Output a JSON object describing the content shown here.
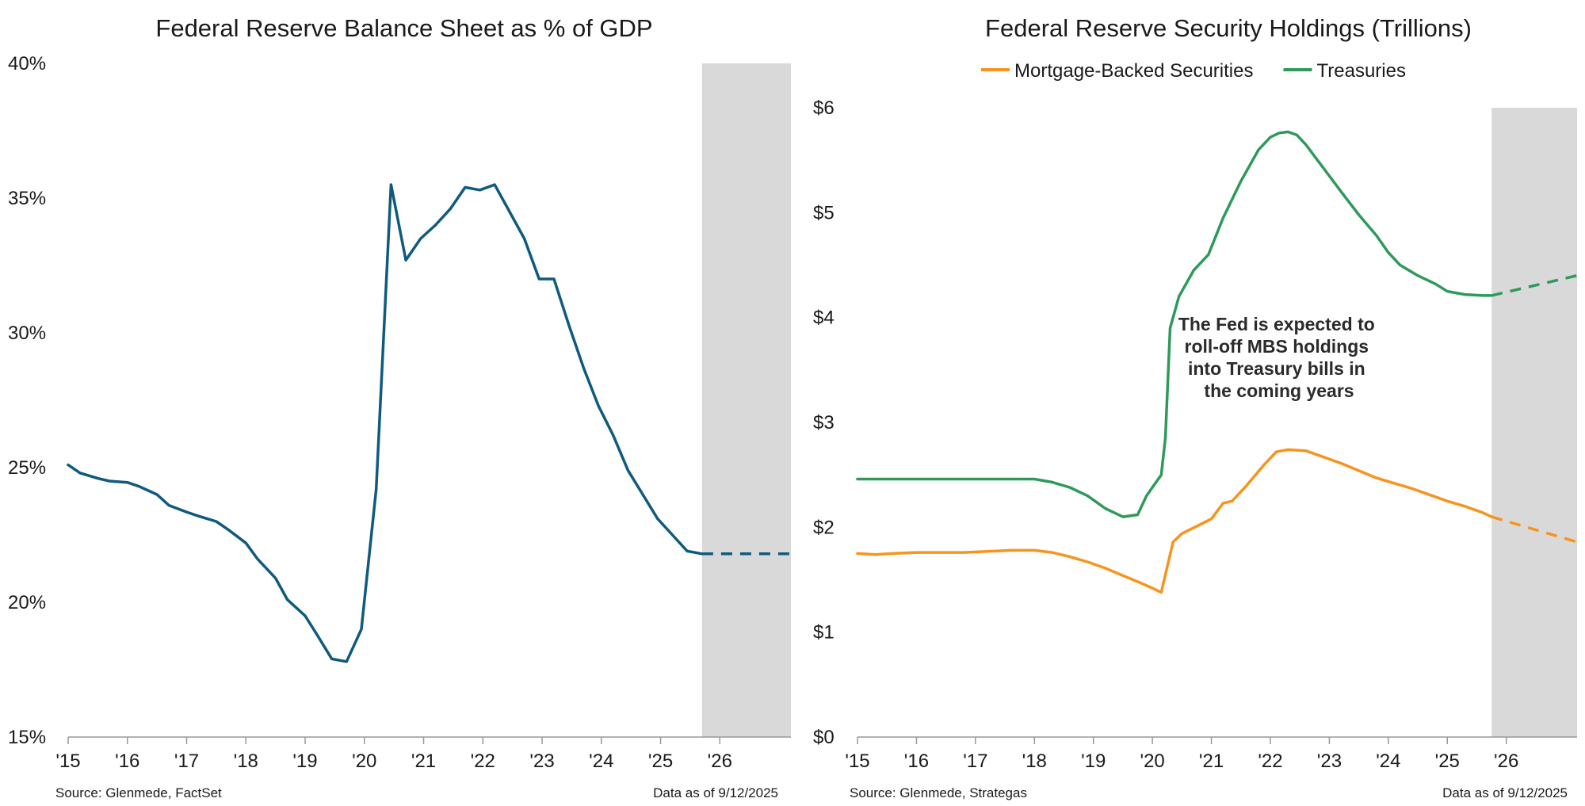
{
  "chart_data": [
    {
      "type": "line",
      "title": "Federal Reserve Balance Sheet as % of GDP",
      "x_ticks": [
        "'15",
        "'16",
        "'17",
        "'18",
        "'19",
        "'20",
        "'21",
        "'22",
        "'23",
        "'24",
        "'25",
        "'26"
      ],
      "y_ticks": [
        "15%",
        "20%",
        "25%",
        "30%",
        "35%",
        "40%"
      ],
      "xlim": [
        2015.0,
        2027.2
      ],
      "ylim": [
        15,
        40
      ],
      "grid": false,
      "shaded_region": [
        2025.7,
        2027.2
      ],
      "series": [
        {
          "color": "#0f5a7e",
          "style": "solid",
          "x": [
            2015.0,
            2015.2,
            2015.5,
            2015.7,
            2016.0,
            2016.2,
            2016.5,
            2016.7,
            2017.0,
            2017.2,
            2017.5,
            2017.7,
            2018.0,
            2018.2,
            2018.5,
            2018.7,
            2019.0,
            2019.2,
            2019.45,
            2019.7,
            2019.95,
            2020.2,
            2020.45,
            2020.7,
            2020.95,
            2021.2,
            2021.45,
            2021.7,
            2021.95,
            2022.2,
            2022.45,
            2022.7,
            2022.95,
            2023.2,
            2023.45,
            2023.7,
            2023.95,
            2024.2,
            2024.45,
            2024.7,
            2024.95,
            2025.2,
            2025.45,
            2025.7
          ],
          "y": [
            25.1,
            24.8,
            24.6,
            24.5,
            24.45,
            24.3,
            24.0,
            23.6,
            23.35,
            23.2,
            23.0,
            22.7,
            22.2,
            21.6,
            20.9,
            20.1,
            19.5,
            18.8,
            17.9,
            17.8,
            19.0,
            24.2,
            35.5,
            32.7,
            33.5,
            34.0,
            34.6,
            35.4,
            35.3,
            35.5,
            34.5,
            33.5,
            32.0,
            32.0,
            30.3,
            28.7,
            27.3,
            26.2,
            24.9,
            24.0,
            23.1,
            22.5,
            21.9,
            21.8
          ]
        },
        {
          "color": "#0f5a7e",
          "style": "dashed",
          "x": [
            2025.7,
            2027.2
          ],
          "y": [
            21.8,
            21.8
          ]
        }
      ],
      "source": "Source: Glenmede, FactSet",
      "data_note": "Data as of 9/12/2025"
    },
    {
      "type": "line",
      "title": "Federal Reserve Security Holdings (Trillions)",
      "x_ticks": [
        "'15",
        "'16",
        "'17",
        "'18",
        "'19",
        "'20",
        "'21",
        "'22",
        "'23",
        "'24",
        "'25",
        "'26"
      ],
      "y_ticks": [
        "$0",
        "$1",
        "$2",
        "$3",
        "$4",
        "$5",
        "$6"
      ],
      "xlim": [
        2015.0,
        2027.2
      ],
      "ylim": [
        0,
        6
      ],
      "grid": false,
      "legend_position": "top",
      "shaded_region": [
        2025.75,
        2027.2
      ],
      "annotation": [
        "The Fed is expected to",
        "roll-off MBS holdings",
        "into Treasury bills in",
        "the coming years"
      ],
      "series": [
        {
          "name": "Mortgage-Backed Securities",
          "color": "#f7941d",
          "style": "solid",
          "x": [
            2015.0,
            2015.3,
            2015.6,
            2016.0,
            2016.4,
            2016.8,
            2017.2,
            2017.6,
            2018.0,
            2018.3,
            2018.6,
            2018.9,
            2019.2,
            2019.5,
            2019.8,
            2020.0,
            2020.15,
            2020.35,
            2020.5,
            2020.75,
            2021.0,
            2021.2,
            2021.35,
            2021.6,
            2021.9,
            2022.1,
            2022.3,
            2022.6,
            2022.9,
            2023.2,
            2023.5,
            2023.8,
            2024.1,
            2024.4,
            2024.7,
            2025.0,
            2025.3,
            2025.6,
            2025.75
          ],
          "y": [
            1.75,
            1.74,
            1.75,
            1.76,
            1.76,
            1.76,
            1.77,
            1.78,
            1.78,
            1.76,
            1.72,
            1.67,
            1.61,
            1.54,
            1.47,
            1.42,
            1.38,
            1.86,
            1.94,
            2.01,
            2.08,
            2.23,
            2.25,
            2.4,
            2.6,
            2.72,
            2.74,
            2.73,
            2.67,
            2.61,
            2.54,
            2.47,
            2.42,
            2.37,
            2.31,
            2.25,
            2.2,
            2.14,
            2.1
          ]
        },
        {
          "name": "Mortgage-Backed Securities",
          "color": "#f7941d",
          "style": "dashed",
          "x": [
            2025.75,
            2027.2
          ],
          "y": [
            2.1,
            1.86
          ]
        },
        {
          "name": "Treasuries",
          "color": "#2e9a5a",
          "style": "solid",
          "x": [
            2015.0,
            2015.5,
            2016.0,
            2016.5,
            2017.0,
            2017.5,
            2018.0,
            2018.3,
            2018.6,
            2018.9,
            2019.2,
            2019.5,
            2019.75,
            2019.9,
            2020.0,
            2020.15,
            2020.22,
            2020.3,
            2020.45,
            2020.7,
            2020.95,
            2021.2,
            2021.5,
            2021.8,
            2022.0,
            2022.15,
            2022.3,
            2022.45,
            2022.6,
            2022.8,
            2023.0,
            2023.2,
            2023.5,
            2023.8,
            2024.0,
            2024.2,
            2024.5,
            2024.8,
            2025.0,
            2025.3,
            2025.6,
            2025.75
          ],
          "y": [
            2.46,
            2.46,
            2.46,
            2.46,
            2.46,
            2.46,
            2.46,
            2.43,
            2.38,
            2.3,
            2.18,
            2.1,
            2.12,
            2.3,
            2.38,
            2.5,
            2.85,
            3.9,
            4.2,
            4.45,
            4.6,
            4.95,
            5.3,
            5.6,
            5.72,
            5.76,
            5.77,
            5.74,
            5.65,
            5.5,
            5.35,
            5.2,
            4.98,
            4.78,
            4.62,
            4.5,
            4.4,
            4.32,
            4.25,
            4.22,
            4.21,
            4.21
          ]
        },
        {
          "name": "Treasuries",
          "color": "#2e9a5a",
          "style": "dashed",
          "x": [
            2025.75,
            2027.2
          ],
          "y": [
            4.21,
            4.4
          ]
        }
      ],
      "legend": [
        {
          "label": "Mortgage-Backed Securities",
          "color": "#f7941d"
        },
        {
          "label": "Treasuries",
          "color": "#2e9a5a"
        }
      ],
      "source": "Source: Glenmede, Strategas",
      "data_note": "Data as of 9/12/2025"
    }
  ]
}
